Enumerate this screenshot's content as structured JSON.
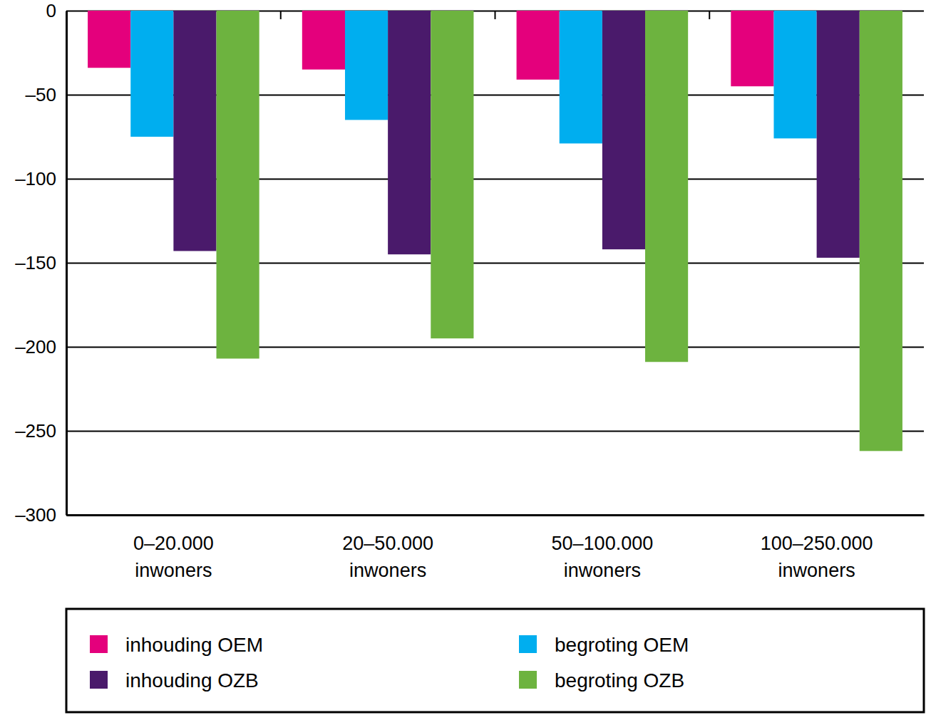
{
  "chart_data": {
    "type": "bar",
    "categories": [
      "0–20.000 inwoners",
      "20–50.000 inwoners",
      "50–100.000 inwoners",
      "100–250.000 inwoners"
    ],
    "series": [
      {
        "name": "inhouding OEM",
        "color": "#e4007c",
        "values": [
          -34,
          -35,
          -41,
          -45
        ]
      },
      {
        "name": "begroting OEM",
        "color": "#00aeef",
        "values": [
          -75,
          -65,
          -79,
          -76
        ]
      },
      {
        "name": "inhouding OZB",
        "color": "#4a1a6b",
        "values": [
          -143,
          -145,
          -142,
          -147
        ]
      },
      {
        "name": "begroting OZB",
        "color": "#6db33f",
        "values": [
          -207,
          -195,
          -209,
          -262
        ]
      }
    ],
    "ylim": [
      -300,
      0
    ],
    "yticks": [
      {
        "value": -300,
        "label": "–300"
      },
      {
        "value": -250,
        "label": "–250"
      },
      {
        "value": -200,
        "label": "–200"
      },
      {
        "value": -150,
        "label": "–150"
      },
      {
        "value": -100,
        "label": "–100"
      },
      {
        "value": -50,
        "label": "–50"
      },
      0
    ],
    "grid": true,
    "legend": "bottom"
  }
}
